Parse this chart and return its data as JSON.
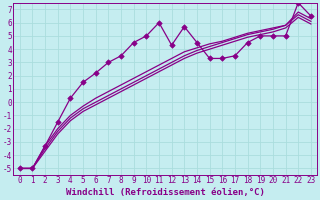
{
  "xlabel": "Windchill (Refroidissement éolien,°C)",
  "xlim": [
    -0.5,
    23.5
  ],
  "ylim": [
    -5.5,
    7.5
  ],
  "xticks": [
    0,
    1,
    2,
    3,
    4,
    5,
    6,
    7,
    8,
    9,
    10,
    11,
    12,
    13,
    14,
    15,
    16,
    17,
    18,
    19,
    20,
    21,
    22,
    23
  ],
  "yticks": [
    -5,
    -4,
    -3,
    -2,
    -1,
    0,
    1,
    2,
    3,
    4,
    5,
    6,
    7
  ],
  "bg_color": "#c5edf0",
  "line_color": "#880088",
  "grid_color": "#aadddd",
  "jagged_x": [
    0,
    1,
    2,
    3,
    4,
    5,
    6,
    7,
    8,
    9,
    10,
    11,
    12,
    13,
    14,
    15,
    16,
    17,
    18,
    19,
    20,
    21,
    22,
    23
  ],
  "jagged_y": [
    -5,
    -5,
    -3.3,
    -1.5,
    0.3,
    1.5,
    2.2,
    3.0,
    3.5,
    4.5,
    5.0,
    6.0,
    4.3,
    5.7,
    4.5,
    3.3,
    3.3,
    3.5,
    4.5,
    5.0,
    5.0,
    5.0,
    7.5,
    6.5
  ],
  "smooth1_x": [
    0,
    1,
    2,
    3,
    4,
    5,
    6,
    7,
    8,
    9,
    10,
    11,
    12,
    13,
    14,
    15,
    16,
    17,
    18,
    19,
    20,
    21,
    22,
    23
  ],
  "smooth1_y": [
    -5,
    -5,
    -3.3,
    -2.0,
    -1.0,
    -0.3,
    0.3,
    0.8,
    1.3,
    1.8,
    2.3,
    2.8,
    3.3,
    3.8,
    4.1,
    4.4,
    4.6,
    4.9,
    5.2,
    5.4,
    5.6,
    5.8,
    6.8,
    6.3
  ],
  "smooth2_x": [
    0,
    1,
    2,
    3,
    4,
    5,
    6,
    7,
    8,
    9,
    10,
    11,
    12,
    13,
    14,
    15,
    16,
    17,
    18,
    19,
    20,
    21,
    22,
    23
  ],
  "smooth2_y": [
    -5,
    -5,
    -3.5,
    -2.2,
    -1.2,
    -0.5,
    0.0,
    0.5,
    1.0,
    1.5,
    2.0,
    2.5,
    3.0,
    3.5,
    3.9,
    4.2,
    4.5,
    4.8,
    5.1,
    5.3,
    5.5,
    5.8,
    6.6,
    6.1
  ],
  "smooth3_x": [
    0,
    1,
    2,
    3,
    4,
    5,
    6,
    7,
    8,
    9,
    10,
    11,
    12,
    13,
    14,
    15,
    16,
    17,
    18,
    19,
    20,
    21,
    22,
    23
  ],
  "smooth3_y": [
    -5,
    -5,
    -3.7,
    -2.4,
    -1.4,
    -0.7,
    -0.2,
    0.3,
    0.8,
    1.3,
    1.8,
    2.3,
    2.8,
    3.3,
    3.7,
    4.0,
    4.3,
    4.6,
    4.9,
    5.1,
    5.3,
    5.6,
    6.4,
    5.9
  ],
  "marker": "D",
  "markersize": 2.8,
  "linewidth": 0.9,
  "tick_fontsize": 5.5,
  "xlabel_fontsize": 6.5,
  "font_family": "monospace"
}
